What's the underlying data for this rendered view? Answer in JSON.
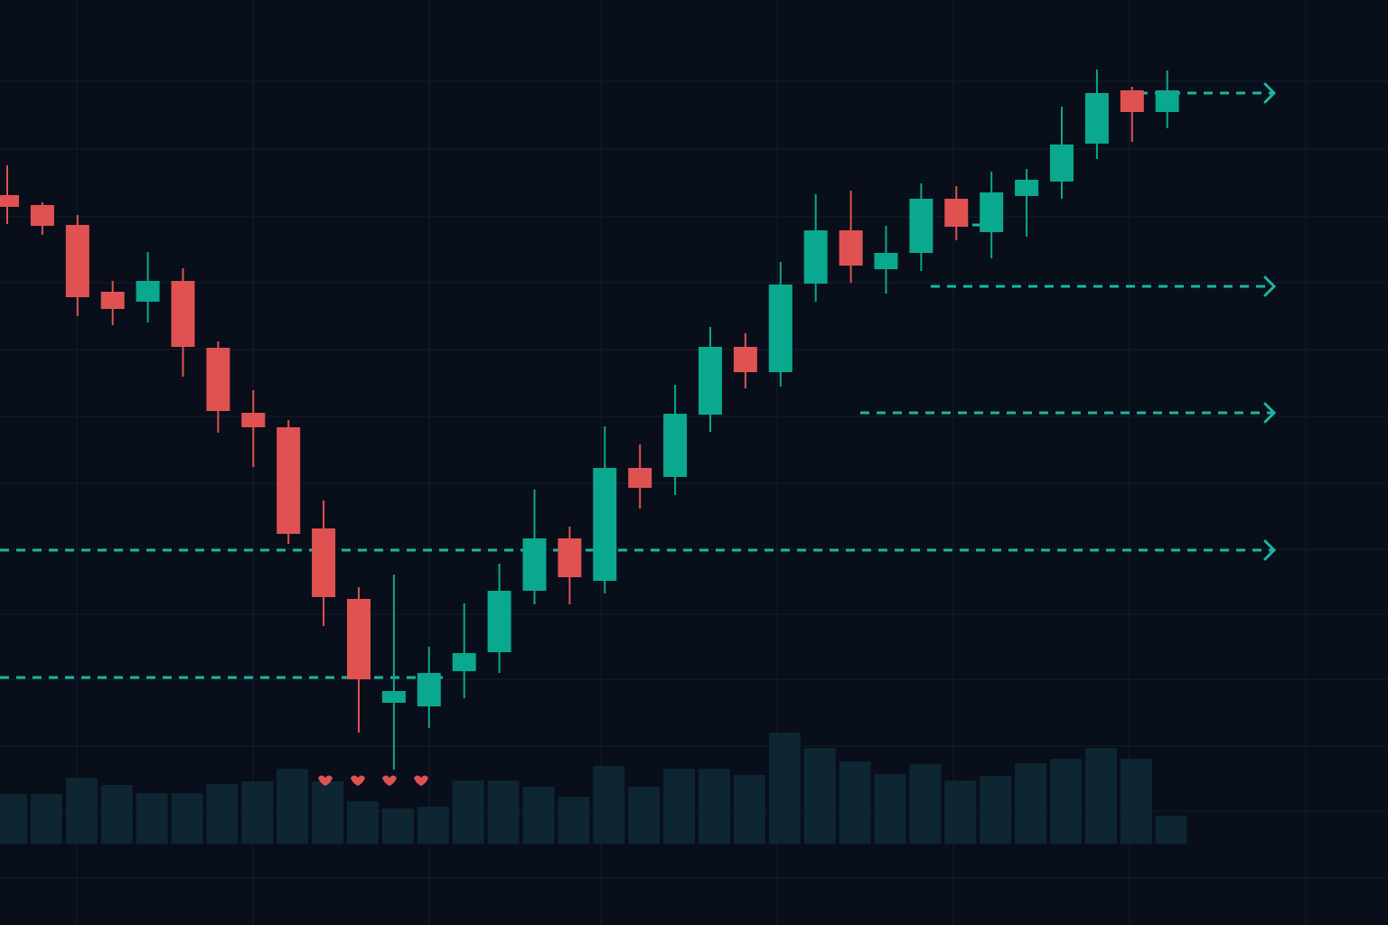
{
  "chart_data": {
    "type": "candlestick",
    "open": [
      808,
      797,
      775,
      701,
      690,
      713,
      639,
      567,
      551,
      439,
      361,
      246,
      242,
      281,
      302,
      370,
      428,
      381,
      506,
      496,
      565,
      640,
      612,
      710,
      769,
      726,
      744,
      804,
      767,
      807,
      823,
      865,
      924,
      900
    ],
    "high": [
      841,
      800,
      786,
      713,
      745,
      727,
      646,
      592,
      559,
      470,
      374,
      388,
      308,
      356,
      400,
      482,
      441,
      552,
      532,
      598,
      662,
      655,
      734,
      809,
      813,
      774,
      821,
      818,
      834,
      837,
      906,
      947,
      928,
      946
    ],
    "low": [
      776,
      764,
      674,
      664,
      667,
      607,
      545,
      507,
      422,
      331,
      213,
      172,
      218,
      251,
      279,
      355,
      355,
      367,
      461,
      476,
      546,
      594,
      596,
      690,
      711,
      699,
      724,
      758,
      738,
      762,
      804,
      848,
      867,
      882
    ],
    "close": [
      795,
      774,
      695,
      682,
      713,
      640,
      569,
      551,
      433,
      363,
      272,
      259,
      279,
      301,
      370,
      428,
      385,
      506,
      484,
      566,
      640,
      612,
      709,
      769,
      730,
      744,
      804,
      773,
      811,
      825,
      864,
      921,
      900,
      924
    ],
    "volume": [
      55,
      55,
      73,
      65,
      56,
      56,
      66,
      69,
      83,
      69,
      47,
      39,
      41,
      70,
      70,
      63,
      52,
      86,
      63,
      83,
      83,
      76,
      123,
      106,
      91,
      77,
      88,
      70,
      75,
      89,
      94,
      106,
      94,
      31
    ],
    "up_color": "#0aa88f",
    "down_color": "#e05252",
    "volume_color": "#0e2532",
    "level_color": "#1bb5a5",
    "levels": [
      921,
      775,
      707,
      567,
      415,
      274
    ],
    "ylim": [
      0,
      1024
    ],
    "yticks": [
      934,
      859,
      784,
      711,
      637,
      563,
      489,
      416,
      344,
      272,
      198,
      126,
      52
    ],
    "grid": true
  }
}
